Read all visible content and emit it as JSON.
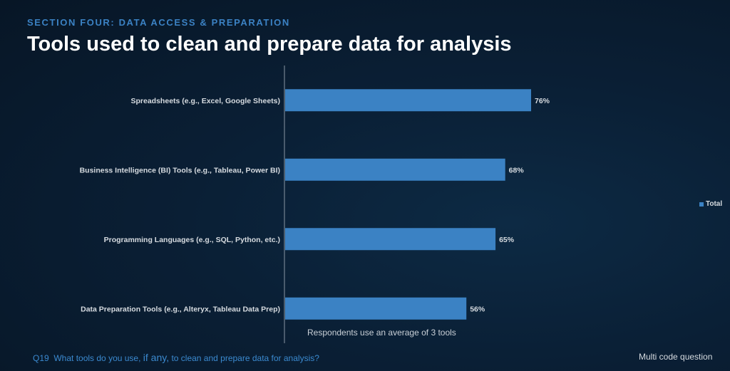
{
  "header": {
    "section": "SECTION FOUR: DATA ACCESS & PREPARATION",
    "title": "Tools used to clean and prepare data for analysis"
  },
  "chart_data": {
    "type": "bar",
    "orientation": "horizontal",
    "categories": [
      "Spreadsheets (e.g., Excel, Google Sheets)",
      "Business Intelligence (BI) Tools (e.g., Tableau, Power BI)",
      "Programming Languages (e.g., SQL, Python, etc.)",
      "Data Preparation Tools (e.g., Alteryx, Tableau Data Prep)"
    ],
    "series": [
      {
        "name": "Total",
        "values": [
          76,
          68,
          65,
          56
        ]
      }
    ],
    "value_labels": [
      "76%",
      "68%",
      "65%",
      "56%"
    ],
    "xlim": [
      0,
      100
    ],
    "grid": false,
    "legend_position": "right",
    "color": "#3b82c4"
  },
  "notes": {
    "average": "Respondents use an average of 3 tools"
  },
  "footer": {
    "q_number": "Q19",
    "q_text_1": "What tools do you use,",
    "q_text_big": "if any,",
    "q_text_2": "to clean and prepare data for analysis?",
    "multi": "Multi code question"
  }
}
